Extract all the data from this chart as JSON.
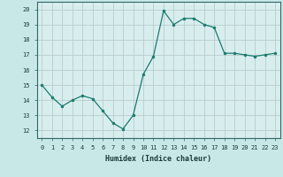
{
  "x": [
    0,
    1,
    2,
    3,
    4,
    5,
    6,
    7,
    8,
    9,
    10,
    11,
    12,
    13,
    14,
    15,
    16,
    17,
    18,
    19,
    20,
    21,
    22,
    23
  ],
  "y": [
    15.0,
    14.2,
    13.6,
    14.0,
    14.3,
    14.1,
    13.3,
    12.5,
    12.1,
    13.0,
    15.7,
    16.9,
    19.9,
    19.0,
    19.4,
    19.4,
    19.0,
    18.8,
    17.1,
    17.1,
    17.0,
    16.9,
    17.0,
    17.1
  ],
  "title": "",
  "xlabel": "Humidex (Indice chaleur)",
  "ylabel": "",
  "xlim": [
    -0.5,
    23.5
  ],
  "ylim": [
    11.5,
    20.5
  ],
  "yticks": [
    12,
    13,
    14,
    15,
    16,
    17,
    18,
    19,
    20
  ],
  "xticks": [
    0,
    1,
    2,
    3,
    4,
    5,
    6,
    7,
    8,
    9,
    10,
    11,
    12,
    13,
    14,
    15,
    16,
    17,
    18,
    19,
    20,
    21,
    22,
    23
  ],
  "xtick_labels": [
    "0",
    "1",
    "2",
    "3",
    "4",
    "5",
    "6",
    "7",
    "8",
    "9",
    "10",
    "11",
    "12",
    "13",
    "14",
    "15",
    "16",
    "17",
    "18",
    "19",
    "20",
    "21",
    "22",
    "23"
  ],
  "line_color": "#1a7a6e",
  "marker_color": "#1a7a6e",
  "bg_color": "#c8e8e8",
  "grid_color": "#b8cccc",
  "plot_bg": "#d8eeee"
}
